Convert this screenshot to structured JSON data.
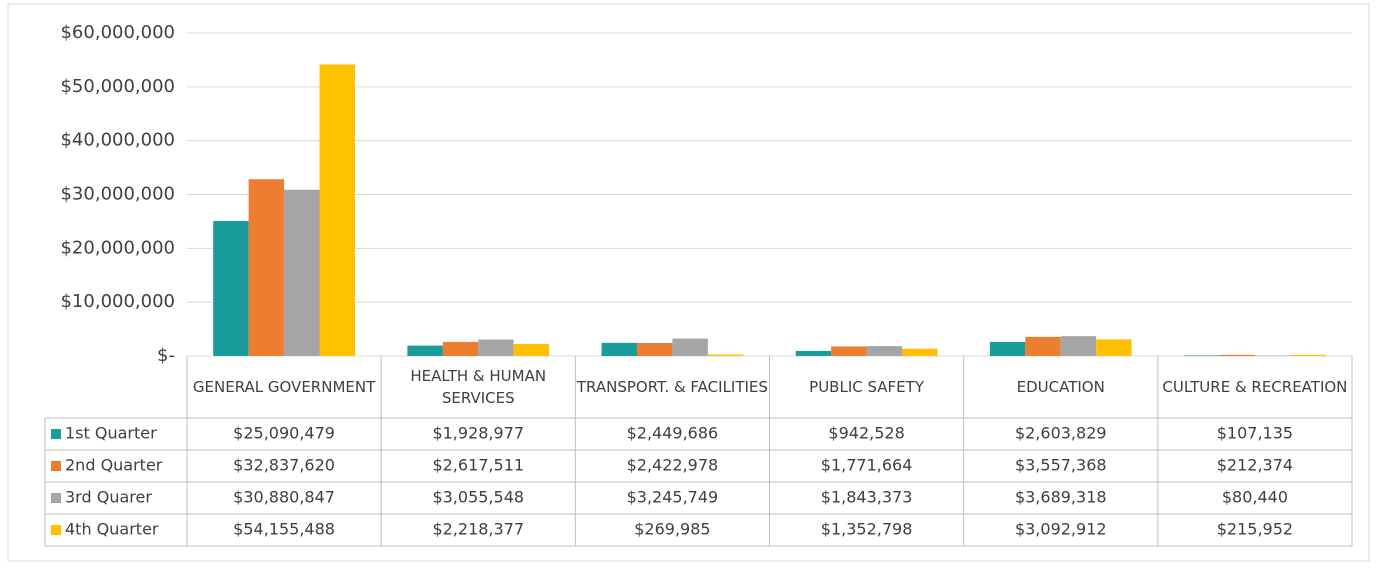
{
  "chart_data": {
    "type": "bar",
    "categories": [
      "GENERAL GOVERNMENT",
      "HEALTH & HUMAN SERVICES",
      "TRANSPORT. & FACILITIES",
      "PUBLIC SAFETY",
      "EDUCATION",
      "CULTURE & RECREATION"
    ],
    "series": [
      {
        "name": "1st Quarter",
        "color": "#1a9c9c",
        "values": [
          25090479,
          1928977,
          2449686,
          942528,
          2603829,
          107135
        ],
        "value_labels": [
          "$25,090,479",
          "$1,928,977",
          "$2,449,686",
          "$942,528",
          "$2,603,829",
          "$107,135"
        ]
      },
      {
        "name": "2nd Quarter",
        "color": "#ed7d31",
        "values": [
          32837620,
          2617511,
          2422978,
          1771664,
          3557368,
          212374
        ],
        "value_labels": [
          "$32,837,620",
          "$2,617,511",
          "$2,422,978",
          "$1,771,664",
          "$3,557,368",
          "$212,374"
        ]
      },
      {
        "name": "3rd Quarer",
        "color": "#a5a5a5",
        "values": [
          30880847,
          3055548,
          3245749,
          1843373,
          3689318,
          80440
        ],
        "value_labels": [
          "$30,880,847",
          "$3,055,548",
          "$3,245,749",
          "$1,843,373",
          "$3,689,318",
          "$80,440"
        ]
      },
      {
        "name": "4th Quarter",
        "color": "#ffc000",
        "values": [
          54155488,
          2218377,
          269985,
          1352798,
          3092912,
          215952
        ],
        "value_labels": [
          "$54,155,488",
          "$2,218,377",
          "$269,985",
          "$1,352,798",
          "$3,092,912",
          "$215,952"
        ]
      }
    ],
    "ylim": [
      0,
      60000000
    ],
    "yticks": [
      {
        "value": 0,
        "label": "$-"
      },
      {
        "value": 10000000,
        "label": "$10,000,000"
      },
      {
        "value": 20000000,
        "label": "$20,000,000"
      },
      {
        "value": 30000000,
        "label": "$30,000,000"
      },
      {
        "value": 40000000,
        "label": "$40,000,000"
      },
      {
        "value": 50000000,
        "label": "$50,000,000"
      },
      {
        "value": 60000000,
        "label": "$60,000,000"
      }
    ],
    "grid": true
  }
}
